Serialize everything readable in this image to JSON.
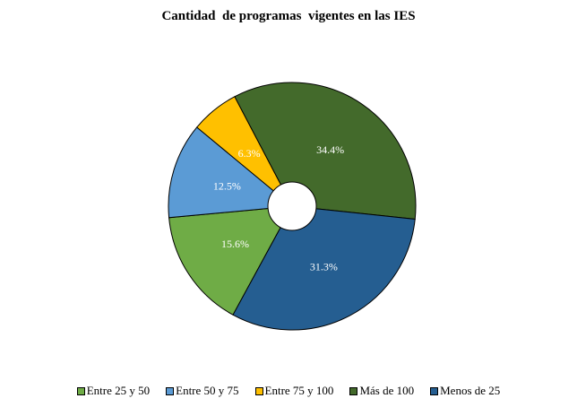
{
  "chart_data": {
    "type": "pie",
    "variant": "donut",
    "title": "Cantidad  de programas  vigentes en las IES",
    "slices": [
      {
        "label": "Más de 100",
        "value": 34.4,
        "display": "34.4%",
        "color": "#436a2b"
      },
      {
        "label": "Menos de 25",
        "value": 31.3,
        "display": "31.3%",
        "color": "#255e91"
      },
      {
        "label": "Entre 25 y 50",
        "value": 15.6,
        "display": "15.6%",
        "color": "#6fac46"
      },
      {
        "label": "Entre 50 y 75",
        "value": 12.5,
        "display": "12.5%",
        "color": "#5b9bd5"
      },
      {
        "label": "Entre 75 y 100",
        "value": 6.3,
        "display": "6.3%",
        "color": "#ffc000"
      }
    ],
    "legend": {
      "position": "bottom",
      "order": [
        "Entre 25 y 50",
        "Entre 50 y 75",
        "Entre 75 y 100",
        "Más de 100",
        "Menos de 25"
      ]
    }
  }
}
